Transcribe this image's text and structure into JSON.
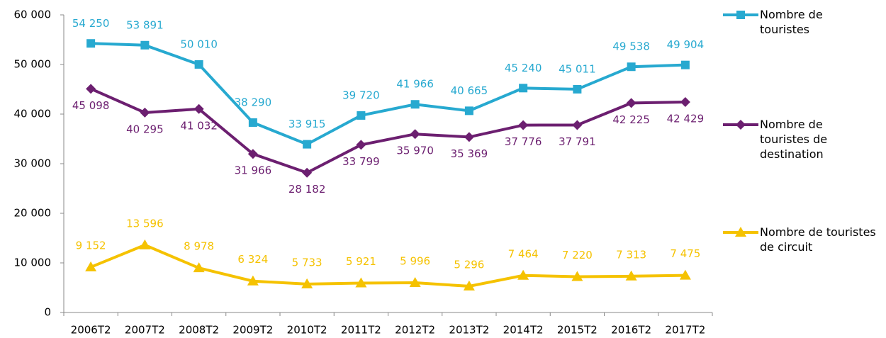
{
  "chart_data": {
    "type": "line",
    "categories": [
      "2006T2",
      "2007T2",
      "2008T2",
      "2009T2",
      "2010T2",
      "2011T2",
      "2012T2",
      "2013T2",
      "2014T2",
      "2015T2",
      "2016T2",
      "2017T2"
    ],
    "series": [
      {
        "name": "Nombre de touristes",
        "color": "#27a9d0",
        "marker": "square",
        "values": [
          54250,
          53891,
          50010,
          38290,
          33915,
          39720,
          41966,
          40665,
          45240,
          45011,
          49538,
          49904
        ],
        "value_labels": [
          "54 250",
          "53 891",
          "50 010",
          "38 290",
          "33 915",
          "39 720",
          "41 966",
          "40 665",
          "45 240",
          "45 011",
          "49 538",
          "49 904"
        ]
      },
      {
        "name": "Nombre de touristes de destination",
        "color": "#6c1f70",
        "marker": "diamond",
        "values": [
          45098,
          40295,
          41032,
          31966,
          28182,
          33799,
          35970,
          35369,
          37776,
          37791,
          42225,
          42429
        ],
        "value_labels": [
          "45 098",
          "40 295",
          "41 032",
          "31 966",
          "28 182",
          "33 799",
          "35 970",
          "35 369",
          "37 776",
          "37 791",
          "42 225",
          "42 429"
        ]
      },
      {
        "name": "Nombre de touristes de circuit",
        "color": "#f5c200",
        "marker": "triangle",
        "values": [
          9152,
          13596,
          8978,
          6324,
          5733,
          5921,
          5996,
          5296,
          7464,
          7220,
          7313,
          7475
        ],
        "value_labels": [
          "9 152",
          "13 596",
          "8 978",
          "6 324",
          "5 733",
          "5 921",
          "5 996",
          "5 296",
          "7 464",
          "7 220",
          "7 313",
          "7 475"
        ]
      }
    ],
    "ylim": [
      0,
      60000
    ],
    "yticks": [
      0,
      {
        "value": 10000,
        "label": "10 000"
      },
      {
        "value": 20000,
        "label": "20 000"
      },
      {
        "value": 30000,
        "label": "30 000"
      },
      {
        "value": 40000,
        "label": "40 000"
      },
      {
        "value": 50000,
        "label": "50 000"
      },
      {
        "value": 60000,
        "label": "60 000"
      }
    ],
    "legend": "right",
    "grid": false
  }
}
